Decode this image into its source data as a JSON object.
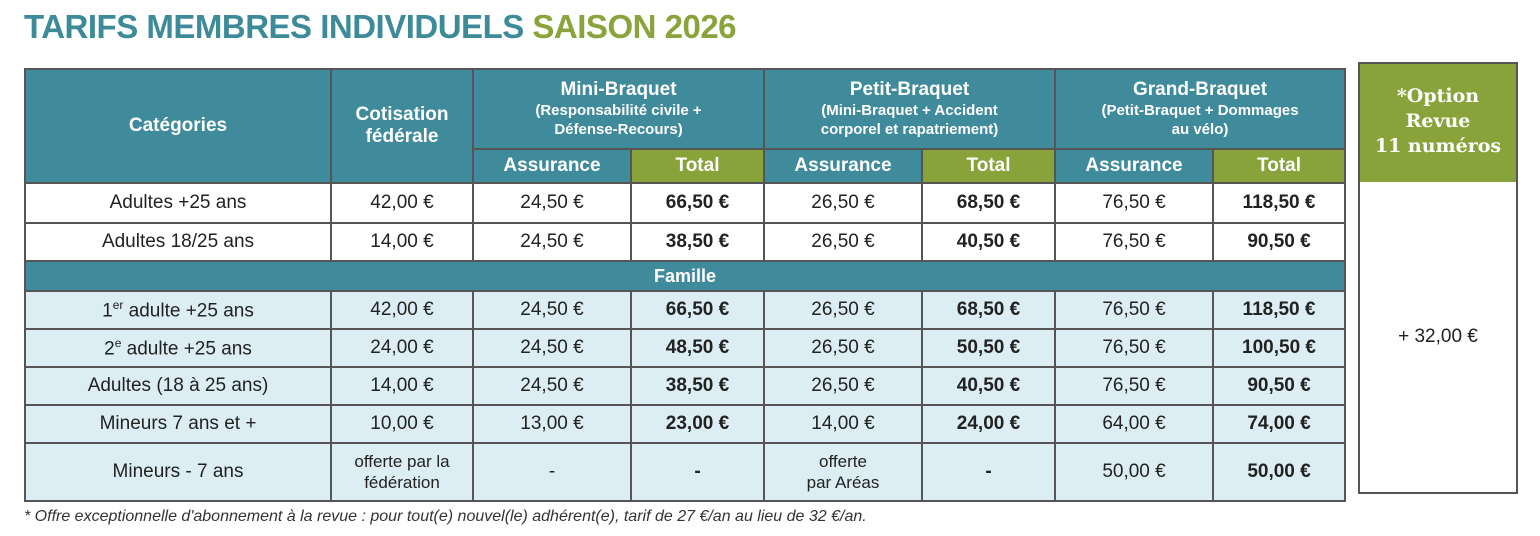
{
  "title": {
    "part1": "TARIFS MEMBRES INDIVIDUELS",
    "part2": "SAISON 2026"
  },
  "header": {
    "categories": "Catégories",
    "cotisation_line1": "Cotisation",
    "cotisation_line2": "fédérale",
    "plans": [
      {
        "name": "Mini-Braquet",
        "desc1": "(Responsabilité civile +",
        "desc2": "Défense-Recours)"
      },
      {
        "name": "Petit-Braquet",
        "desc1": "(Mini-Braquet + Accident",
        "desc2": "corporel et rapatriement)"
      },
      {
        "name": "Grand-Braquet",
        "desc1": "(Petit-Braquet + Dommages",
        "desc2": "au vélo)"
      }
    ],
    "assurance": "Assurance",
    "total": "Total"
  },
  "rows": [
    {
      "cat": "Adultes +25 ans",
      "cot": "42,00 €",
      "mini_ass": "24,50 €",
      "mini_tot": "66,50 €",
      "petit_ass": "26,50 €",
      "petit_tot": "68,50 €",
      "grand_ass": "76,50 €",
      "grand_tot": "118,50 €"
    },
    {
      "cat": "Adultes 18/25 ans",
      "cot": "14,00 €",
      "mini_ass": "24,50 €",
      "mini_tot": "38,50 €",
      "petit_ass": "26,50 €",
      "petit_tot": "40,50 €",
      "grand_ass": "76,50 €",
      "grand_tot": "90,50 €"
    }
  ],
  "famille_label": "Famille",
  "famille_rows": [
    {
      "cat_prefix": "1",
      "cat_sup": "er",
      "cat_rest": " adulte +25 ans",
      "cot": "42,00 €",
      "mini_ass": "24,50 €",
      "mini_tot": "66,50 €",
      "petit_ass": "26,50 €",
      "petit_tot": "68,50 €",
      "grand_ass": "76,50 €",
      "grand_tot": "118,50 €"
    },
    {
      "cat_prefix": "2",
      "cat_sup": "e",
      "cat_rest": " adulte +25 ans",
      "cot": "24,00 €",
      "mini_ass": "24,50 €",
      "mini_tot": "48,50 €",
      "petit_ass": "26,50 €",
      "petit_tot": "50,50 €",
      "grand_ass": "76,50 €",
      "grand_tot": "100,50 €"
    },
    {
      "cat": "Adultes (18 à 25 ans)",
      "cot": "14,00 €",
      "mini_ass": "24,50 €",
      "mini_tot": "38,50 €",
      "petit_ass": "26,50 €",
      "petit_tot": "40,50 €",
      "grand_ass": "76,50 €",
      "grand_tot": "90,50 €"
    },
    {
      "cat": "Mineurs 7 ans et +",
      "cot": "10,00 €",
      "mini_ass": "13,00 €",
      "mini_tot": "23,00 €",
      "petit_ass": "14,00 €",
      "petit_tot": "24,00 €",
      "grand_ass": "64,00 €",
      "grand_tot": "74,00 €"
    },
    {
      "cat": "Mineurs - 7 ans",
      "cot_line1": "offerte par la",
      "cot_line2": "fédération",
      "mini_ass": "-",
      "mini_tot": "-",
      "petit_ass_line1": "offerte",
      "petit_ass_line2": "par Aréas",
      "petit_tot": "-",
      "grand_ass": "50,00 €",
      "grand_tot": "50,00 €"
    }
  ],
  "option": {
    "line1": "*Option",
    "line2": "Revue",
    "line3": "11 numéros",
    "price": "+ 32,00 €"
  },
  "footnote": "* Offre exceptionnelle d'abonnement à la revue : pour tout(e) nouvel(le) adhérent(e), tarif de 27 €/an au lieu de 32 €/an.",
  "colors": {
    "teal": "#3f8b9b",
    "green": "#88a33a",
    "row_tint": "#dceef3",
    "title_teal": "#3d8a99",
    "title_green": "#8aa33a"
  }
}
